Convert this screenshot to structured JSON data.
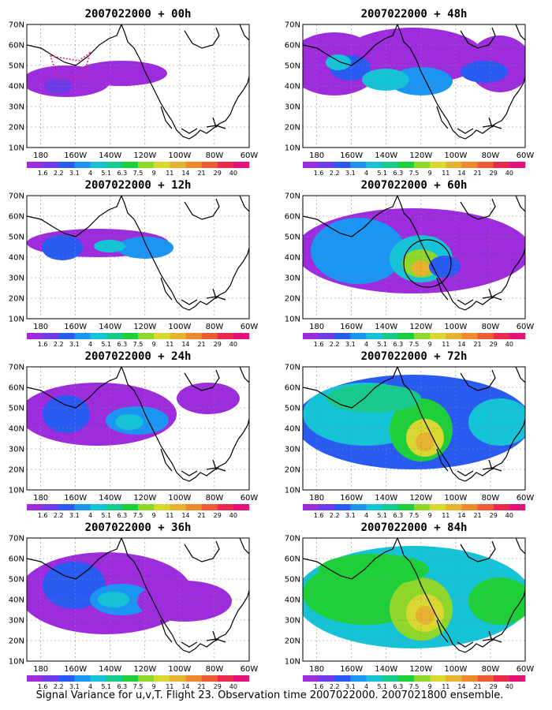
{
  "panels": [
    {
      "title": "2007022000 + 00h",
      "lead": "00h"
    },
    {
      "title": "2007022000 + 48h",
      "lead": "48h"
    },
    {
      "title": "2007022000 + 12h",
      "lead": "12h"
    },
    {
      "title": "2007022000 + 60h",
      "lead": "60h"
    },
    {
      "title": "2007022000 + 24h",
      "lead": "24h"
    },
    {
      "title": "2007022000 + 72h",
      "lead": "72h"
    },
    {
      "title": "2007022000 + 36h",
      "lead": "36h"
    },
    {
      "title": "2007022000 + 84h",
      "lead": "84h"
    }
  ],
  "lat_labels": [
    "70N",
    "60N",
    "50N",
    "40N",
    "30N",
    "20N",
    "10N"
  ],
  "lon_labels": [
    "180",
    "160W",
    "140W",
    "120W",
    "100W",
    "80W",
    "60W"
  ],
  "colorbar": {
    "labels": [
      "1.6",
      "2.2",
      "3.1",
      "4",
      "5.1",
      "6.3",
      "7.5",
      "9",
      "11",
      "14",
      "21",
      "29",
      "40"
    ],
    "colors": [
      "#9c2cdc",
      "#6f3be8",
      "#2a5bf0",
      "#1c95f2",
      "#16c3d6",
      "#17c98a",
      "#1fcf3a",
      "#8fd72b",
      "#d9d732",
      "#e8b231",
      "#ee8a2c",
      "#ee5b34",
      "#ea2a4c",
      "#e5127a"
    ]
  },
  "caption": "Signal Variance for u,v,T. Flight 23. Observation time 2007022000. 2007021800 ensemble."
}
